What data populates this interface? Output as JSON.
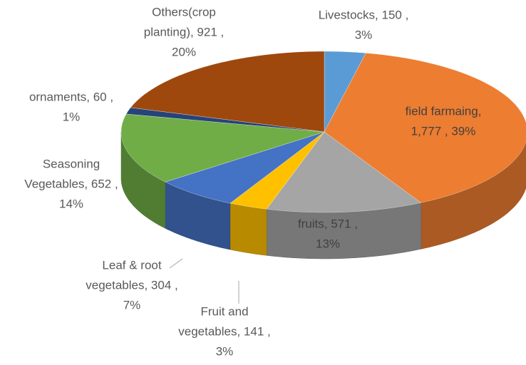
{
  "chart_data": {
    "type": "pie3d",
    "values": [
      150,
      1777,
      571,
      141,
      304,
      652,
      60,
      921
    ],
    "value_labels": [
      [
        "Livestocks, 150 ,",
        "3%"
      ],
      [
        "field farmaing,",
        "1,777 , 39%"
      ],
      [
        "fruits, 571 ,",
        "13%"
      ],
      [
        "Fruit and",
        "vegetables, 141 ,",
        "3%"
      ],
      [
        "Leaf & root",
        "vegetables, 304 ,",
        "7%"
      ],
      [
        "Seasoning",
        "Vegetables, 652 ,",
        "14%"
      ],
      [
        "ornaments, 60 ,",
        "1%"
      ],
      [
        "Others(crop",
        "planting), 921 ,",
        "20%"
      ]
    ],
    "colors": [
      "#5b9bd5",
      "#ed7d31",
      "#a5a5a5",
      "#ffc000",
      "#4472c4",
      "#70ad47",
      "#264478",
      "#9e480e"
    ]
  }
}
